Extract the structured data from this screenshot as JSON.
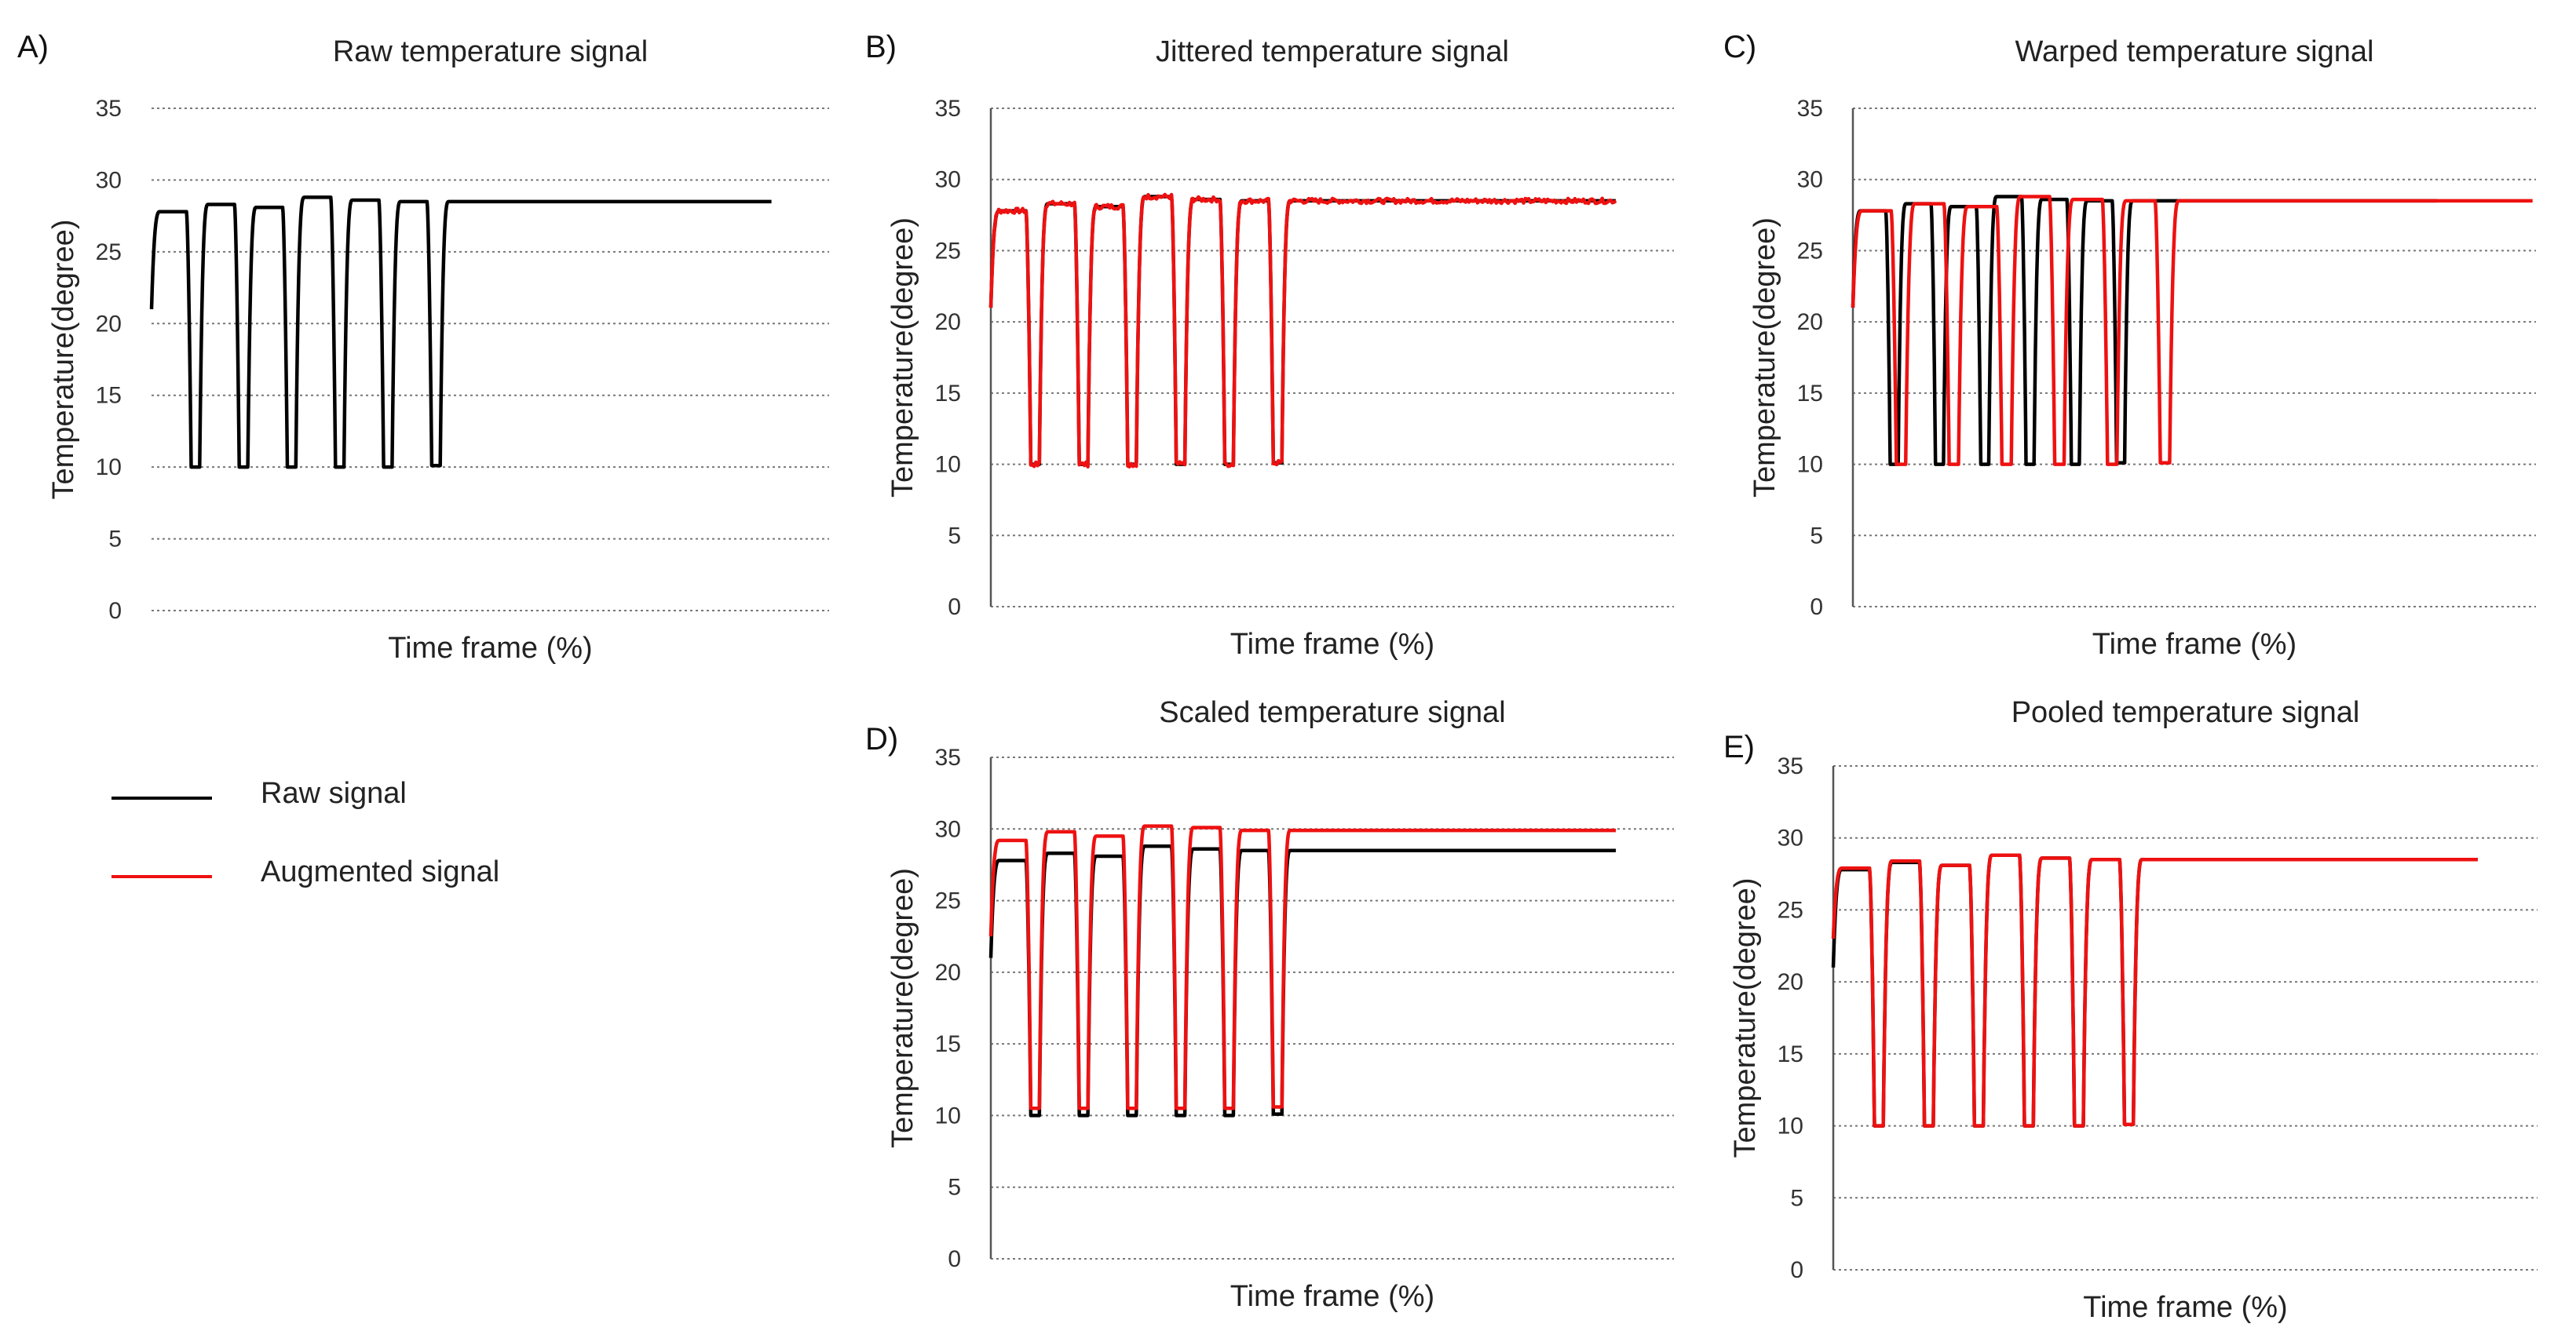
{
  "panel_letters": {
    "A": "A)",
    "B": "B)",
    "C": "C)",
    "D": "D)",
    "E": "E)"
  },
  "legend": {
    "raw_label": "Raw signal",
    "augmented_label": "Augmented signal",
    "raw_color": "#000000",
    "augmented_color": "#ee1111"
  },
  "colors": {
    "raw": "#000000",
    "augmented": "#ee1111",
    "grid": "#777777",
    "axis": "#555555"
  },
  "chart_data": [
    {
      "id": "A",
      "type": "line",
      "title": "Raw temperature signal",
      "xlabel": "Time frame (%)",
      "ylabel": "Temperature(degree)",
      "ylim": [
        0,
        35
      ],
      "yticks": [
        0,
        5,
        10,
        15,
        20,
        25,
        30,
        35
      ],
      "grid": true,
      "series": [
        {
          "name": "Raw signal",
          "color": "#000000",
          "start": 21,
          "end_x": 91.5,
          "cycles": [
            {
              "high": 27.8,
              "low": 10.0
            },
            {
              "high": 28.3,
              "low": 10.0
            },
            {
              "high": 28.1,
              "low": 10.0
            },
            {
              "high": 28.8,
              "low": 10.0
            },
            {
              "high": 28.6,
              "low": 10.0
            },
            {
              "high": 28.5,
              "low": 10.1
            },
            {
              "high": 28.5,
              "low": null
            }
          ]
        }
      ]
    },
    {
      "id": "B",
      "type": "line",
      "title": "Jittered temperature signal",
      "xlabel": "Time frame (%)",
      "ylabel": "Temperature(degree)",
      "ylim": [
        0,
        35
      ],
      "yticks": [
        0,
        5,
        10,
        15,
        20,
        25,
        30,
        35
      ],
      "grid": true,
      "series": [
        {
          "name": "Raw signal",
          "color": "#000000",
          "start": 21,
          "end_x": 91.5,
          "cycles": [
            {
              "high": 27.8,
              "low": 10.0
            },
            {
              "high": 28.3,
              "low": 10.0
            },
            {
              "high": 28.1,
              "low": 10.0
            },
            {
              "high": 28.8,
              "low": 10.0
            },
            {
              "high": 28.6,
              "low": 10.0
            },
            {
              "high": 28.5,
              "low": 10.1
            },
            {
              "high": 28.5,
              "low": null
            }
          ]
        },
        {
          "name": "Augmented signal",
          "color": "#ee1111",
          "start": 21,
          "end_x": 91.5,
          "noise": 0.35,
          "cycles": [
            {
              "high": 27.8,
              "low": 10.0
            },
            {
              "high": 28.3,
              "low": 10.0
            },
            {
              "high": 28.1,
              "low": 10.0
            },
            {
              "high": 28.8,
              "low": 10.0
            },
            {
              "high": 28.6,
              "low": 10.0
            },
            {
              "high": 28.5,
              "low": 10.1
            },
            {
              "high": 28.5,
              "low": null
            }
          ]
        }
      ]
    },
    {
      "id": "C",
      "type": "line",
      "title": "Warped temperature signal",
      "xlabel": "Time frame (%)",
      "ylabel": "Temperature(degree)",
      "ylim": [
        0,
        35
      ],
      "yticks": [
        0,
        5,
        10,
        15,
        20,
        25,
        30,
        35
      ],
      "grid": true,
      "series": [
        {
          "name": "Raw signal",
          "color": "#000000",
          "start": 21,
          "end_x": 85.5,
          "cycles": [
            {
              "high": 27.8,
              "low": 10.0
            },
            {
              "high": 28.3,
              "low": 10.0
            },
            {
              "high": 28.1,
              "low": 10.0
            },
            {
              "high": 28.8,
              "low": 10.0
            },
            {
              "high": 28.6,
              "low": 10.0
            },
            {
              "high": 28.5,
              "low": 10.1
            },
            {
              "high": 28.5,
              "low": null
            }
          ]
        },
        {
          "name": "Augmented signal",
          "color": "#ee1111",
          "start": 21,
          "end_x": 99.5,
          "cycles": [
            {
              "high": 27.8,
              "low": 10.0
            },
            {
              "high": 28.3,
              "low": 10.0
            },
            {
              "high": 28.1,
              "low": 10.0
            },
            {
              "high": 28.8,
              "low": 10.0
            },
            {
              "high": 28.6,
              "low": 10.0
            },
            {
              "high": 28.5,
              "low": 10.1
            },
            {
              "high": 28.5,
              "low": null
            }
          ]
        }
      ]
    },
    {
      "id": "D",
      "type": "line",
      "title": "Scaled temperature signal",
      "xlabel": "Time frame (%)",
      "ylabel": "Temperature(degree)",
      "ylim": [
        0,
        35
      ],
      "yticks": [
        0,
        5,
        10,
        15,
        20,
        25,
        30,
        35
      ],
      "grid": true,
      "series": [
        {
          "name": "Raw signal",
          "color": "#000000",
          "start": 21,
          "end_x": 91.5,
          "cycles": [
            {
              "high": 27.8,
              "low": 10.0
            },
            {
              "high": 28.3,
              "low": 10.0
            },
            {
              "high": 28.1,
              "low": 10.0
            },
            {
              "high": 28.8,
              "low": 10.0
            },
            {
              "high": 28.6,
              "low": 10.0
            },
            {
              "high": 28.5,
              "low": 10.1
            },
            {
              "high": 28.5,
              "low": null
            }
          ]
        },
        {
          "name": "Augmented signal",
          "color": "#ee1111",
          "start": 22.5,
          "end_x": 91.5,
          "cycles": [
            {
              "high": 29.2,
              "low": 10.5
            },
            {
              "high": 29.8,
              "low": 10.5
            },
            {
              "high": 29.5,
              "low": 10.5
            },
            {
              "high": 30.2,
              "low": 10.5
            },
            {
              "high": 30.1,
              "low": 10.5
            },
            {
              "high": 29.9,
              "low": 10.6
            },
            {
              "high": 29.9,
              "low": null
            }
          ]
        }
      ]
    },
    {
      "id": "E",
      "type": "line",
      "title": "Pooled temperature signal",
      "xlabel": "Time frame (%)",
      "ylabel": "Temperature(degree)",
      "ylim": [
        0,
        35
      ],
      "yticks": [
        0,
        5,
        10,
        15,
        20,
        25,
        30,
        35
      ],
      "grid": true,
      "series": [
        {
          "name": "Raw signal",
          "color": "#000000",
          "start": 21,
          "end_x": 91.5,
          "cycles": [
            {
              "high": 27.8,
              "low": 10.0
            },
            {
              "high": 28.3,
              "low": 10.0
            },
            {
              "high": 28.1,
              "low": 10.0
            },
            {
              "high": 28.8,
              "low": 10.0
            },
            {
              "high": 28.6,
              "low": 10.0
            },
            {
              "high": 28.5,
              "low": 10.1
            },
            {
              "high": 28.5,
              "low": null
            }
          ]
        },
        {
          "name": "Augmented signal",
          "color": "#ee1111",
          "start": 23,
          "end_x": 91.5,
          "cycles": [
            {
              "high": 27.9,
              "low": 10.0
            },
            {
              "high": 28.4,
              "low": 10.0
            },
            {
              "high": 28.1,
              "low": 10.0
            },
            {
              "high": 28.8,
              "low": 10.0
            },
            {
              "high": 28.6,
              "low": 10.0
            },
            {
              "high": 28.5,
              "low": 10.1
            },
            {
              "high": 28.5,
              "low": null
            }
          ]
        }
      ]
    }
  ]
}
